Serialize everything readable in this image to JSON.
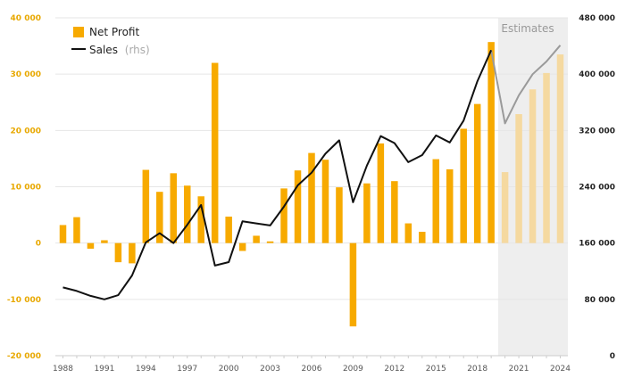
{
  "chart_data": {
    "type": "bar+line",
    "estimates_label": "Estimates",
    "estimate_start_year": 2020,
    "legend": {
      "net_profit_label": "Net Profit",
      "sales_label": "Sales",
      "sales_suffix": "(rhs)"
    },
    "left_axis": {
      "min": -20000,
      "max": 40000,
      "ticks": [
        -20000,
        -10000,
        0,
        10000,
        20000,
        30000,
        40000
      ],
      "tick_labels": [
        "-20 000",
        "-10 000",
        "0",
        "10 000",
        "20 000",
        "30 000",
        "40 000"
      ]
    },
    "right_axis": {
      "min": 0,
      "max": 480000,
      "ticks": [
        0,
        80000,
        160000,
        240000,
        320000,
        400000,
        480000
      ],
      "tick_labels": [
        "0",
        "80 000",
        "160 000",
        "240 000",
        "320 000",
        "400 000",
        "480 000"
      ]
    },
    "x_axis": {
      "tick_labels": [
        "1988",
        "1991",
        "1994",
        "1997",
        "2000",
        "2003",
        "2006",
        "2009",
        "2012",
        "2015",
        "2018",
        "2021",
        "2024"
      ]
    },
    "years": [
      1988,
      1989,
      1990,
      1991,
      1992,
      1993,
      1994,
      1995,
      1996,
      1997,
      1998,
      1999,
      2000,
      2001,
      2002,
      2003,
      2004,
      2005,
      2006,
      2007,
      2008,
      2009,
      2010,
      2011,
      2012,
      2013,
      2014,
      2015,
      2016,
      2017,
      2018,
      2019,
      2020,
      2021,
      2022,
      2023,
      2024
    ],
    "net_profit": [
      3200,
      4600,
      -1000,
      500,
      -3400,
      -3600,
      13000,
      9100,
      12400,
      10200,
      8300,
      32000,
      4700,
      -1400,
      1300,
      300,
      9700,
      12900,
      16000,
      14800,
      9900,
      -14800,
      10600,
      17700,
      11000,
      3500,
      2000,
      14900,
      13100,
      20300,
      24700,
      35700,
      12600,
      22900,
      27300,
      30200,
      33500
    ],
    "sales": [
      97000,
      92000,
      85000,
      80000,
      86000,
      114000,
      161000,
      174000,
      160000,
      186000,
      214000,
      128000,
      133000,
      191000,
      188000,
      185000,
      212000,
      242000,
      260000,
      287000,
      306000,
      218000,
      270000,
      312000,
      302000,
      275000,
      285000,
      313000,
      303000,
      334000,
      390000,
      434000,
      330000,
      370000,
      400000,
      418000,
      441000
    ],
    "colors": {
      "bar_actual": "#f7aa00",
      "bar_estimate": "#f5d9a0",
      "line_actual": "#111111",
      "line_estimate": "#9a9a9a",
      "estimate_bg": "#eeeeee",
      "grid": "#e6e6e6"
    }
  }
}
